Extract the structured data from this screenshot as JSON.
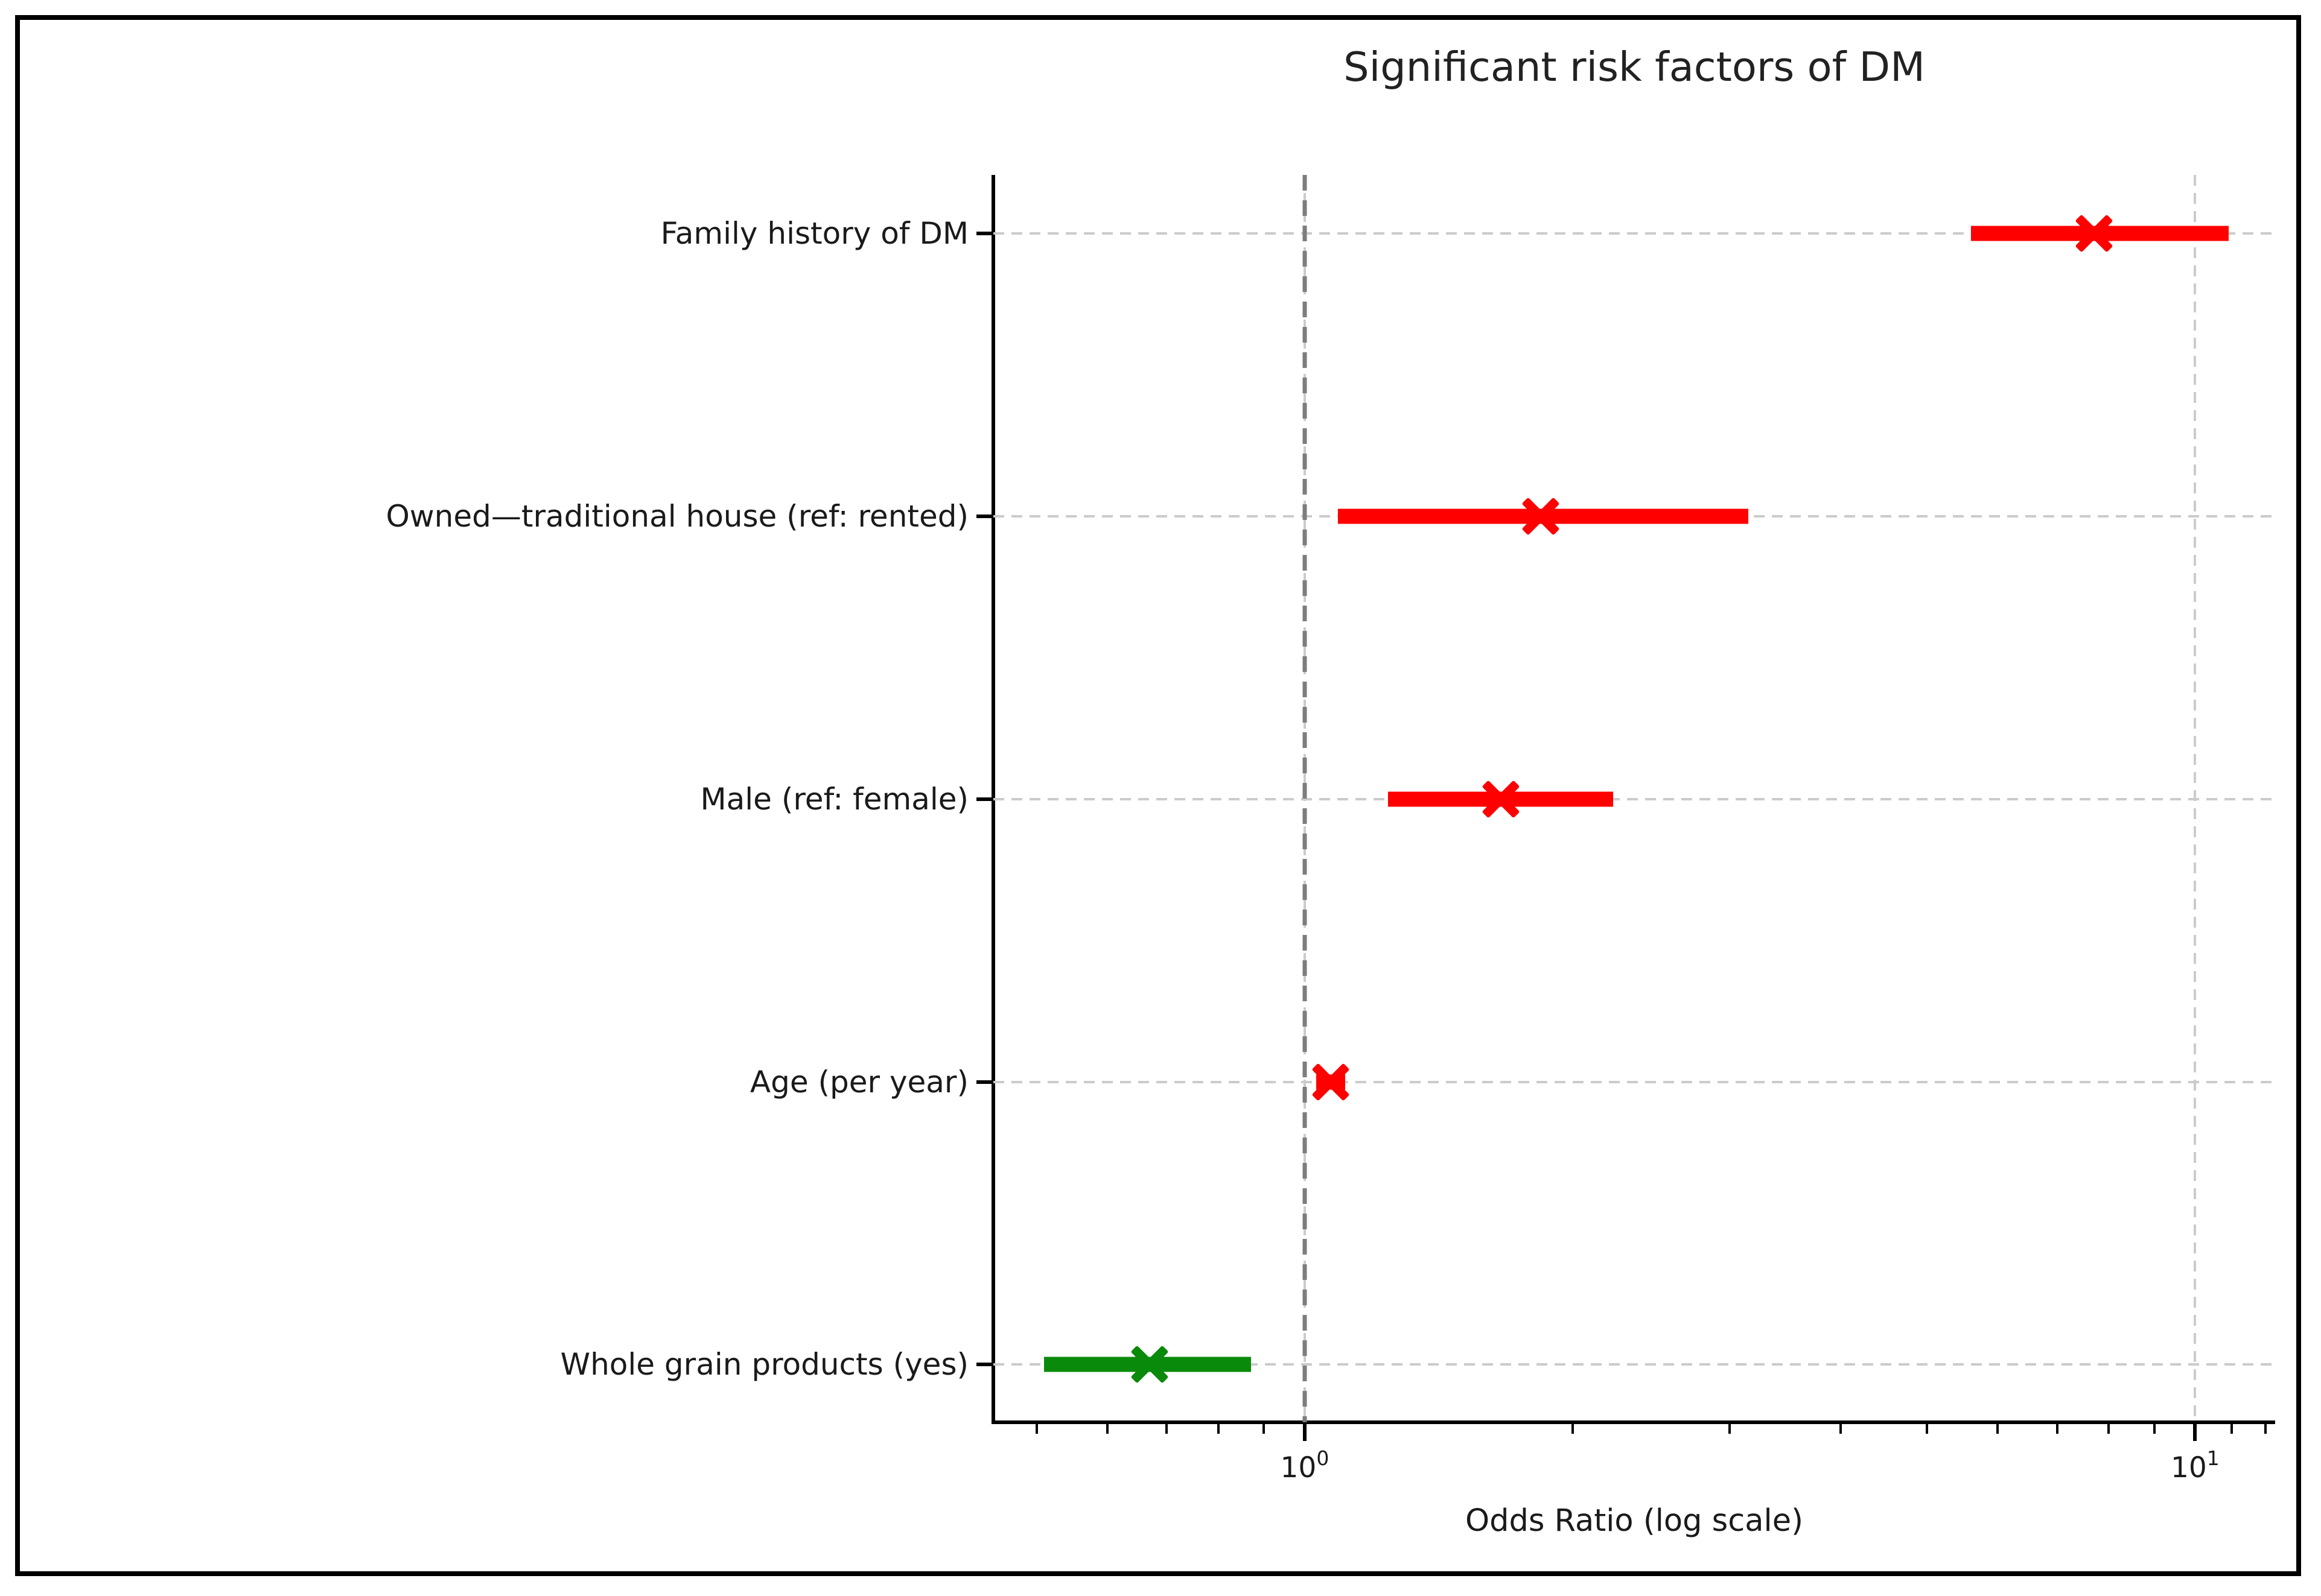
{
  "figure": {
    "title": "Significant risk factors of DM",
    "x_axis_label": "Odds Ratio (log scale)"
  },
  "chart_data": {
    "type": "scatter",
    "variant": "forest-plot-horizontal-error-bars",
    "title": "Significant risk factors of DM",
    "xlabel": "Odds Ratio (log scale)",
    "ylabel": "",
    "x_scale": "log10",
    "xlim": [
      0.447,
      12.3
    ],
    "grid": true,
    "legend": false,
    "reference_line": {
      "value": 1.0,
      "color": "#7d7d7d",
      "style": "dashed"
    },
    "x_major_ticks": [
      {
        "value": 1,
        "label_base": "10",
        "label_exp": "0"
      },
      {
        "value": 10,
        "label_base": "10",
        "label_exp": "1"
      }
    ],
    "x_minor_ticks": [
      0.5,
      0.6,
      0.7,
      0.8,
      0.9,
      2,
      3,
      4,
      5,
      6,
      7,
      8,
      9,
      11,
      12
    ],
    "categories": [
      "Family history of DM",
      "Owned—traditional house (ref: rented)",
      "Male (ref: female)",
      "Age (per year)",
      "Whole grain products (yes)"
    ],
    "points": [
      {
        "label": "Family history of DM",
        "odds_ratio": 7.7,
        "ci_low": 5.6,
        "ci_high": 10.9,
        "effect": "risk",
        "color": "#ff0000"
      },
      {
        "label": "Owned—traditional house (ref: rented)",
        "odds_ratio": 1.84,
        "ci_low": 1.09,
        "ci_high": 3.15,
        "effect": "risk",
        "color": "#ff0000"
      },
      {
        "label": "Male (ref: female)",
        "odds_ratio": 1.66,
        "ci_low": 1.24,
        "ci_high": 2.22,
        "effect": "risk",
        "color": "#ff0000"
      },
      {
        "label": "Age (per year)",
        "odds_ratio": 1.07,
        "ci_low": 1.03,
        "ci_high": 1.11,
        "effect": "risk",
        "color": "#ff0000"
      },
      {
        "label": "Whole grain products (yes)",
        "odds_ratio": 0.67,
        "ci_low": 0.51,
        "ci_high": 0.87,
        "effect": "protective",
        "color": "#0a8a0a"
      }
    ],
    "colors": {
      "risk": "#ff0000",
      "protective": "#0a8a0a",
      "grid": "#cbcbcb",
      "reference": "#7d7d7d"
    },
    "marker": "x"
  }
}
